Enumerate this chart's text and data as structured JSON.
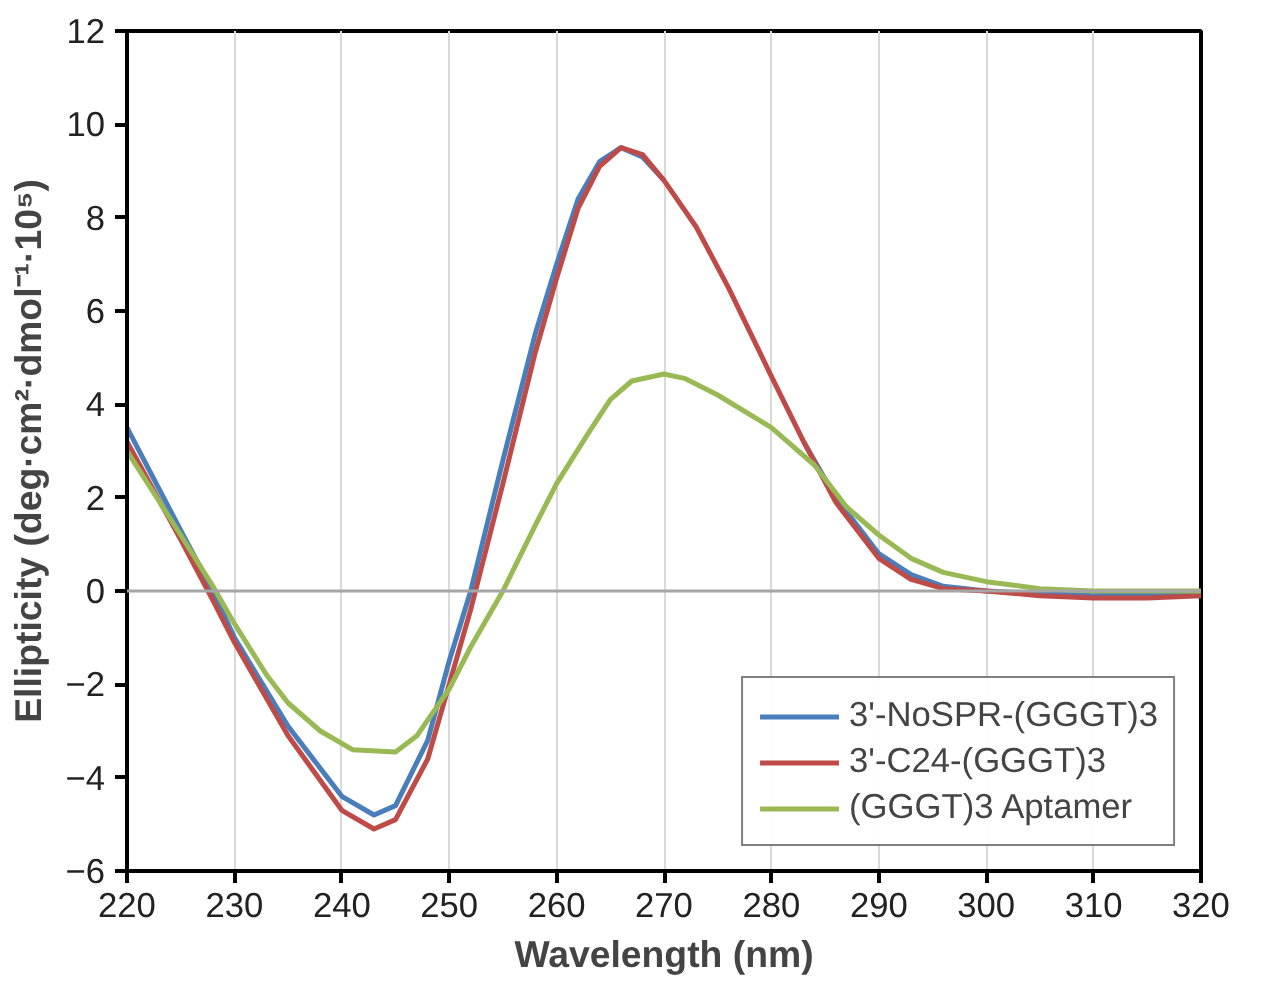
{
  "chart_data": {
    "type": "line",
    "xlabel": "Wavelength (nm)",
    "ylabel": "Ellipticity (deg·cm²·dmol⁻¹·10⁵)",
    "xlim": [
      220,
      320
    ],
    "ylim": [
      -6,
      12
    ],
    "xticks": [
      220,
      230,
      240,
      250,
      260,
      270,
      280,
      290,
      300,
      310,
      320
    ],
    "yticks": [
      -6,
      -4,
      -2,
      0,
      2,
      4,
      6,
      8,
      10,
      12
    ],
    "grid": "x",
    "legend": "bottom right",
    "marker": "none",
    "line_style": "solid",
    "ref_lines": [
      {
        "axis": "y",
        "value": 0,
        "label": null,
        "color": "#a6a6a6"
      }
    ],
    "series": [
      {
        "name": "3'-NoSPR-(GGGT)3",
        "color": "#4a7ebb",
        "x": [
          220,
          225,
          228,
          230,
          235,
          240,
          243,
          245,
          248,
          250,
          252,
          255,
          258,
          260,
          262,
          264,
          266,
          268,
          270,
          273,
          276,
          280,
          283,
          286,
          290,
          293,
          296,
          300,
          305,
          310,
          315,
          320
        ],
        "values": [
          3.5,
          1.3,
          0,
          -1.0,
          -2.9,
          -4.4,
          -4.8,
          -4.6,
          -3.2,
          -1.5,
          0,
          2.8,
          5.5,
          7.0,
          8.4,
          9.2,
          9.5,
          9.3,
          8.8,
          null,
          null,
          null,
          3.2,
          2.0,
          0.8,
          0.35,
          0.1,
          0.0,
          -0.05,
          -0.1,
          -0.05,
          -0.1
        ]
      },
      {
        "name": "3'-C24-(GGGT)3",
        "color": "#be4b48",
        "x": [
          220,
          225,
          228,
          230,
          235,
          240,
          243,
          245,
          248,
          250,
          252,
          255,
          258,
          260,
          262,
          264,
          266,
          268,
          270,
          273,
          276,
          280,
          283,
          286,
          290,
          293,
          296,
          300,
          305,
          310,
          315,
          320
        ],
        "values": [
          3.2,
          1.1,
          -0.2,
          -1.1,
          -3.1,
          -4.7,
          -5.1,
          -4.9,
          -3.6,
          -2.0,
          -0.4,
          2.3,
          5.1,
          6.7,
          8.2,
          9.1,
          9.5,
          9.35,
          8.8,
          7.8,
          6.5,
          4.6,
          3.2,
          1.9,
          0.7,
          0.25,
          0.05,
          0.0,
          -0.1,
          -0.15,
          -0.15,
          -0.1
        ]
      },
      {
        "name": "(GGGT)3 Aptamer",
        "color": "#98b954",
        "x": [
          220,
          225,
          228,
          230,
          233,
          235,
          238,
          241,
          245,
          247,
          250,
          252,
          255,
          258,
          260,
          263,
          265,
          267,
          270,
          272,
          275,
          280,
          284,
          287,
          290,
          293,
          296,
          300,
          305,
          310,
          320
        ],
        "values": [
          3.0,
          1.2,
          0.1,
          -0.7,
          -1.8,
          -2.4,
          -3.0,
          -3.4,
          -3.45,
          -3.1,
          -2.1,
          -1.2,
          0.0,
          1.4,
          2.3,
          3.4,
          4.1,
          4.5,
          4.65,
          4.55,
          4.2,
          3.5,
          2.7,
          1.8,
          1.2,
          0.7,
          0.4,
          0.2,
          0.05,
          0.0,
          0.0
        ]
      }
    ]
  }
}
